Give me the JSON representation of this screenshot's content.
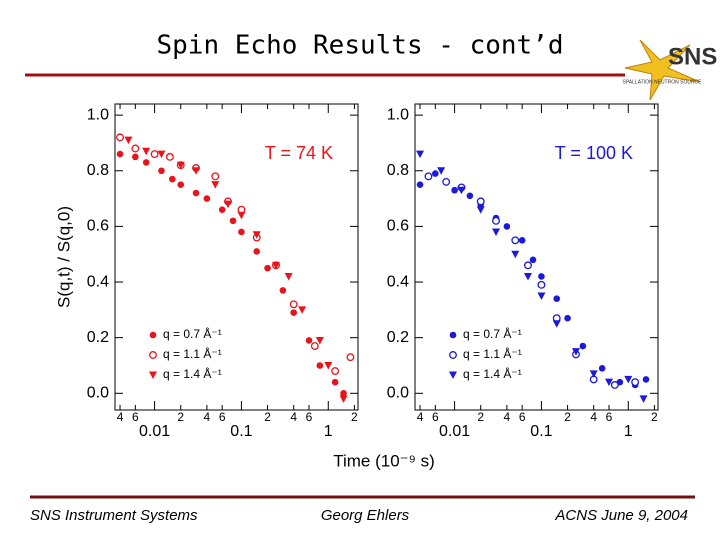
{
  "title": "Spin Echo Results - cont’d",
  "logo": "SNS",
  "logo_caption": "SPALLATION NEUTRON SOURCE",
  "footer": [
    "SNS Instrument Systems",
    "Georg Ehlers",
    "ACNS  June 9, 2004"
  ],
  "chart_data": [
    {
      "type": "scatter",
      "annotation": "T = 74 K",
      "annotation_color": "#e8141c",
      "ylabel": "S(q,t) / S(q,0)",
      "xlabel": "Time (10⁻⁹ s)",
      "xscale": "log",
      "xlim": [
        0.0035,
        2.2
      ],
      "ylim": [
        -0.06,
        1.04
      ],
      "xticks": [
        {
          "value": 0.004,
          "label": "4"
        },
        {
          "value": 0.006,
          "label": "6"
        },
        0.01,
        {
          "value": 0.02,
          "label": "2"
        },
        {
          "value": 0.04,
          "label": "4"
        },
        {
          "value": 0.06,
          "label": "6"
        },
        0.1,
        {
          "value": 0.2,
          "label": "2"
        },
        {
          "value": 0.4,
          "label": "4"
        },
        {
          "value": 0.6,
          "label": "6"
        },
        1,
        {
          "value": 2,
          "label": "2"
        }
      ],
      "yticks": [
        {
          "value": 0,
          "label": "0.0"
        },
        0.2,
        0.4,
        0.6,
        0.8,
        {
          "value": 1,
          "label": "1.0"
        }
      ],
      "legend": "lower left",
      "series": [
        {
          "name": "q = 0.7 Å⁻¹",
          "color": "#e8141c",
          "marker": "circle",
          "x": [
            0.004,
            0.006,
            0.008,
            0.012,
            0.016,
            0.02,
            0.03,
            0.04,
            0.06,
            0.08,
            0.1,
            0.15,
            0.2,
            0.3,
            0.4,
            0.6,
            0.8,
            1.2,
            1.5
          ],
          "values": [
            0.86,
            0.85,
            0.83,
            0.8,
            0.77,
            0.75,
            0.72,
            0.7,
            0.66,
            0.62,
            0.58,
            0.51,
            0.45,
            0.37,
            0.29,
            0.19,
            0.1,
            0.04,
            0.0
          ]
        },
        {
          "name": "q = 1.1 Å⁻¹",
          "color": "#e8141c",
          "marker": "open-circle",
          "x": [
            0.004,
            0.006,
            0.01,
            0.015,
            0.02,
            0.03,
            0.05,
            0.07,
            0.1,
            0.15,
            0.25,
            0.4,
            0.7,
            1.2,
            1.8
          ],
          "values": [
            0.92,
            0.88,
            0.86,
            0.85,
            0.82,
            0.81,
            0.78,
            0.69,
            0.66,
            0.56,
            0.46,
            0.32,
            0.17,
            0.08,
            0.13
          ]
        },
        {
          "name": "q = 1.4 Å⁻¹",
          "color": "#e8141c",
          "marker": "triangle-down",
          "x": [
            0.005,
            0.008,
            0.012,
            0.02,
            0.03,
            0.05,
            0.07,
            0.1,
            0.15,
            0.25,
            0.35,
            0.5,
            0.8,
            1.0,
            1.5
          ],
          "values": [
            0.91,
            0.87,
            0.86,
            0.82,
            0.8,
            0.75,
            0.68,
            0.64,
            0.57,
            0.46,
            0.42,
            0.3,
            0.19,
            0.1,
            -0.02
          ]
        }
      ]
    },
    {
      "type": "scatter",
      "annotation": "T = 100 K",
      "annotation_color": "#1a1ad8",
      "xscale": "log",
      "xlim": [
        0.0035,
        2.2
      ],
      "ylim": [
        -0.06,
        1.04
      ],
      "xticks": [
        {
          "value": 0.004,
          "label": "4"
        },
        {
          "value": 0.006,
          "label": "6"
        },
        0.01,
        {
          "value": 0.02,
          "label": "2"
        },
        {
          "value": 0.04,
          "label": "4"
        },
        {
          "value": 0.06,
          "label": "6"
        },
        0.1,
        {
          "value": 0.2,
          "label": "2"
        },
        {
          "value": 0.4,
          "label": "4"
        },
        {
          "value": 0.6,
          "label": "6"
        },
        1,
        {
          "value": 2,
          "label": "2"
        }
      ],
      "yticks": [
        {
          "value": 0,
          "label": "0.0"
        },
        0.2,
        0.4,
        0.6,
        0.8,
        {
          "value": 1,
          "label": "1.0"
        }
      ],
      "legend": "lower left",
      "series": [
        {
          "name": "q = 0.7 Å⁻¹",
          "color": "#1a1ad8",
          "marker": "circle",
          "x": [
            0.004,
            0.006,
            0.01,
            0.015,
            0.02,
            0.03,
            0.04,
            0.06,
            0.08,
            0.1,
            0.15,
            0.2,
            0.3,
            0.5,
            0.8,
            1.2,
            1.6
          ],
          "values": [
            0.75,
            0.79,
            0.73,
            0.71,
            0.68,
            0.63,
            0.6,
            0.55,
            0.48,
            0.42,
            0.34,
            0.27,
            0.17,
            0.09,
            0.04,
            0.03,
            0.05
          ]
        },
        {
          "name": "q = 1.1 Å⁻¹",
          "color": "#1a1ad8",
          "marker": "open-circle",
          "x": [
            0.005,
            0.008,
            0.012,
            0.02,
            0.03,
            0.05,
            0.07,
            0.1,
            0.15,
            0.25,
            0.4,
            0.7,
            1.2
          ],
          "values": [
            0.78,
            0.76,
            0.74,
            0.69,
            0.62,
            0.55,
            0.46,
            0.39,
            0.27,
            0.14,
            0.05,
            0.03,
            0.04
          ]
        },
        {
          "name": "q = 1.4 Å⁻¹",
          "color": "#1a1ad8",
          "marker": "triangle-down",
          "x": [
            0.004,
            0.007,
            0.012,
            0.02,
            0.03,
            0.05,
            0.07,
            0.1,
            0.15,
            0.25,
            0.4,
            0.6,
            1.0,
            1.5
          ],
          "values": [
            0.86,
            0.8,
            0.73,
            0.66,
            0.58,
            0.5,
            0.42,
            0.35,
            0.25,
            0.15,
            0.07,
            0.04,
            0.05,
            -0.02
          ]
        }
      ]
    }
  ]
}
